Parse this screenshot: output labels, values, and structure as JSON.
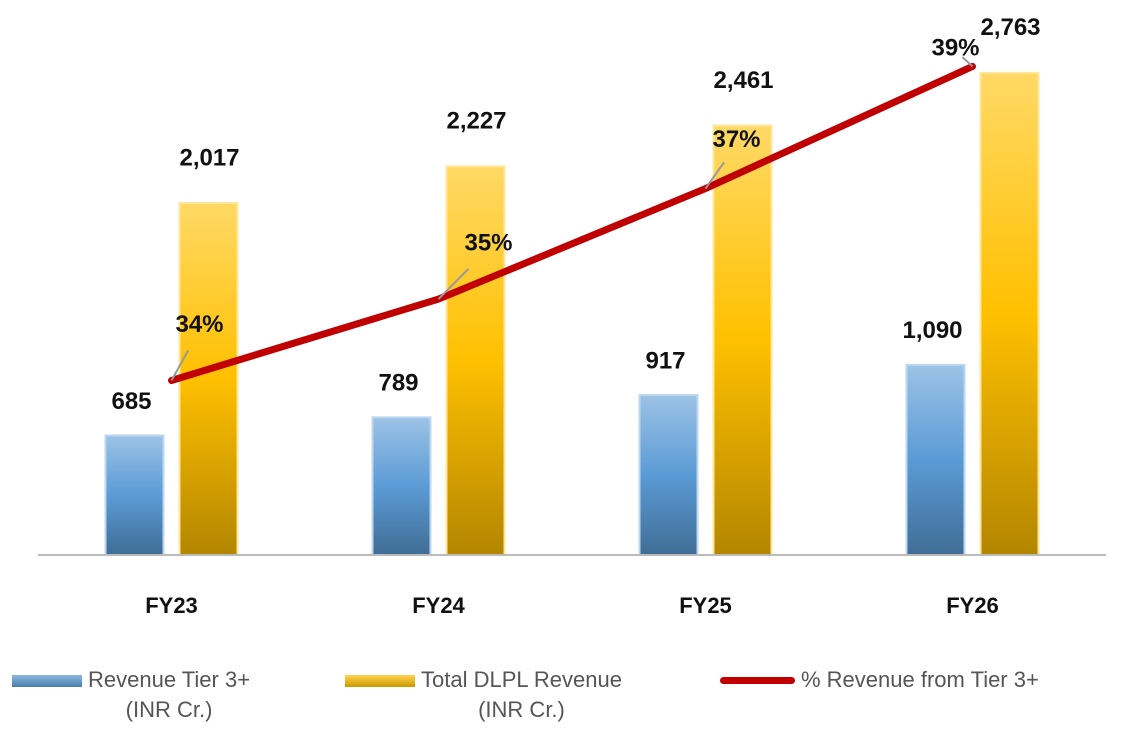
{
  "chart_data": {
    "type": "bar_line",
    "categories": [
      "FY23",
      "FY24",
      "FY25",
      "FY26"
    ],
    "series": [
      {
        "name": "Revenue Tier 3+\n(INR Cr.)",
        "type": "bar",
        "color": "#5b9bd5",
        "values": [
          685,
          789,
          917,
          1090
        ],
        "value_labels": [
          "685",
          "789",
          "917",
          "1,090"
        ]
      },
      {
        "name": "Total DLPL Revenue\n(INR Cr.)",
        "type": "bar",
        "color": "#ffc000",
        "values": [
          2017,
          2227,
          2461,
          2763
        ],
        "value_labels": [
          "2,017",
          "2,227",
          "2,461",
          "2,763"
        ]
      },
      {
        "name": "% Revenue from Tier 3+",
        "type": "line",
        "axis": "y2",
        "color": "#c00000",
        "values": [
          34.0,
          35.4,
          37.3,
          39.4
        ],
        "value_labels": [
          "34%",
          "35%",
          "37%",
          "39%"
        ]
      }
    ],
    "ylim": [
      0,
      3000
    ],
    "y2lim": [
      31,
      40
    ]
  }
}
